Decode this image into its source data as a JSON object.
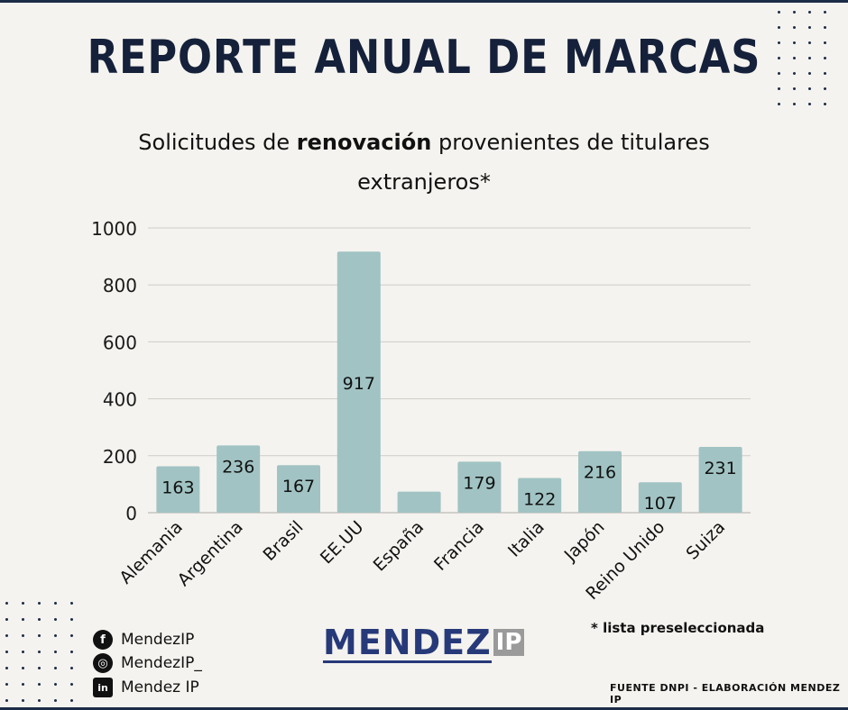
{
  "header": {
    "title": "REPORTE ANUAL DE MARCAS",
    "subtitle_pre": "Solicitudes de ",
    "subtitle_bold": "renovación",
    "subtitle_post": " provenientes de titulares extranjeros*"
  },
  "chart_data": {
    "type": "bar",
    "title": "Solicitudes de renovación provenientes de titulares extranjeros*",
    "xlabel": "",
    "ylabel": "",
    "categories": [
      "Alemania",
      "Argentina",
      "Brasil",
      "EE.UU",
      "España",
      "Francia",
      "Italia",
      "Japón",
      "Reino Unido",
      "Suiza"
    ],
    "values": [
      163,
      236,
      167,
      917,
      74,
      179,
      122,
      216,
      107,
      231
    ],
    "data_labels": [
      "163",
      "236",
      "167",
      "917",
      "",
      "179",
      "122",
      "216",
      "107",
      "231"
    ],
    "ylim": [
      0,
      1000
    ],
    "yticks": [
      0,
      200,
      400,
      600,
      800,
      1000
    ],
    "grid": true,
    "legend": "none",
    "bar_color": "#a1c3c3"
  },
  "social": [
    {
      "icon": "facebook-icon",
      "glyph": "f",
      "label": "MendezIP"
    },
    {
      "icon": "instagram-icon",
      "glyph": "◎",
      "label": "MendezIP_"
    },
    {
      "icon": "linkedin-icon",
      "glyph": "in",
      "label": "Mendez IP"
    }
  ],
  "logo": {
    "main": "MENDEZ",
    "suffix": "IP"
  },
  "footnote": "* lista  preseleccionada",
  "source": "FUENTE DNPI - ELABORACIÓN MENDEZ IP",
  "colors": {
    "title": "#15213a",
    "frame": "#1c2b47",
    "logo": "#263a7a",
    "logo_suffix_bg": "#9a9a9a",
    "background": "#f5f3ef"
  }
}
